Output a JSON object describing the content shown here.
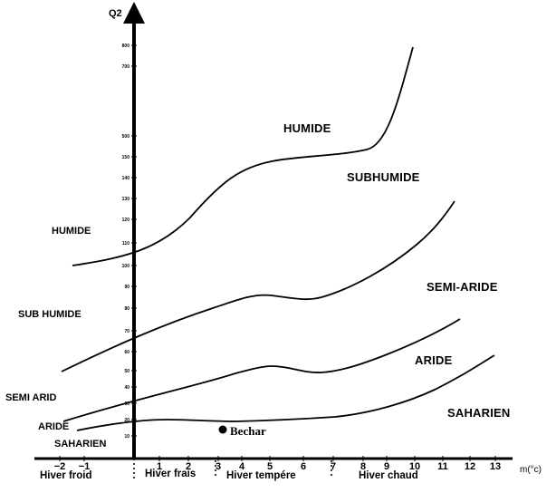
{
  "axes": {
    "y_label": "Q2",
    "x_label": "m(°c)",
    "x_ticks": [
      "−2",
      "−1",
      "1",
      "2",
      "3",
      "4",
      "5",
      "6",
      "7",
      "8",
      "9",
      "10",
      "11",
      "12",
      "13"
    ],
    "y_ticks": [
      "10",
      "20",
      "30",
      "40",
      "50",
      "60",
      "70",
      "80",
      "90",
      "100",
      "110",
      "120",
      "130",
      "140",
      "150",
      "500",
      "700",
      "800"
    ]
  },
  "zones_plot": [
    "HUMIDE",
    "SUBHUMIDE",
    "SEMI-ARIDE",
    "ARIDE",
    "SAHARIEN"
  ],
  "zones_side": [
    "HUMIDE",
    "SUB HUMIDE",
    "SEMI ARID",
    "ARIDE",
    "SAHARIEN"
  ],
  "winter_types": [
    "Hiver froid",
    "Hiver frais",
    "Hiver tempére",
    "Hiver chaud"
  ],
  "station": {
    "name": "Bechar"
  },
  "colors": {
    "ink": "#000000",
    "background": "#ffffff"
  }
}
